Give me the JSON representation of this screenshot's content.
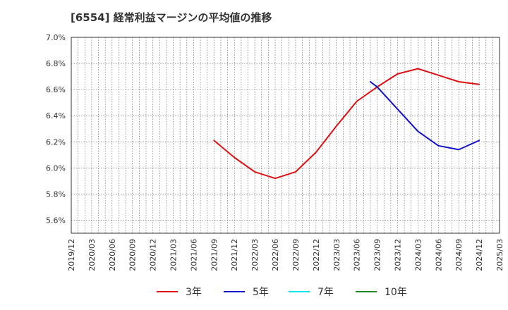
{
  "chart_data": {
    "type": "line",
    "title": "[6554]  経常利益マージンの平均値の推移",
    "xlabel": "",
    "ylabel": "",
    "x_ticks": [
      "2019/12",
      "2020/03",
      "2020/06",
      "2020/09",
      "2020/12",
      "2021/03",
      "2021/06",
      "2021/09",
      "2021/12",
      "2022/03",
      "2022/06",
      "2022/09",
      "2022/12",
      "2023/03",
      "2023/06",
      "2023/09",
      "2023/12",
      "2024/03",
      "2024/06",
      "2024/09",
      "2024/12",
      "2025/03"
    ],
    "y_ticks": [
      "5.6%",
      "5.8%",
      "6.0%",
      "6.2%",
      "6.4%",
      "6.6%",
      "6.8%",
      "7.0%"
    ],
    "ylim": [
      5.5,
      7.0
    ],
    "grid": true,
    "legend_position": "bottom",
    "series": [
      {
        "name": "3年",
        "color": "#dd1111",
        "points": [
          [
            "2021/09",
            6.21
          ],
          [
            "2021/12",
            6.08
          ],
          [
            "2022/03",
            5.97
          ],
          [
            "2022/06",
            5.92
          ],
          [
            "2022/09",
            5.97
          ],
          [
            "2022/12",
            6.12
          ],
          [
            "2023/03",
            6.32
          ],
          [
            "2023/06",
            6.51
          ],
          [
            "2023/09",
            6.62
          ],
          [
            "2023/12",
            6.72
          ],
          [
            "2024/03",
            6.76
          ],
          [
            "2024/06",
            6.71
          ],
          [
            "2024/09",
            6.66
          ],
          [
            "2024/12",
            6.64
          ]
        ]
      },
      {
        "name": "5年",
        "color": "#1111cc",
        "points": [
          [
            "2023/08",
            6.66
          ],
          [
            "2023/09",
            6.62
          ],
          [
            "2023/12",
            6.45
          ],
          [
            "2024/03",
            6.28
          ],
          [
            "2024/06",
            6.17
          ],
          [
            "2024/09",
            6.14
          ],
          [
            "2024/12",
            6.21
          ]
        ]
      },
      {
        "name": "7年",
        "color": "#00e5ee",
        "points": []
      },
      {
        "name": "10年",
        "color": "#228822",
        "points": []
      }
    ]
  }
}
